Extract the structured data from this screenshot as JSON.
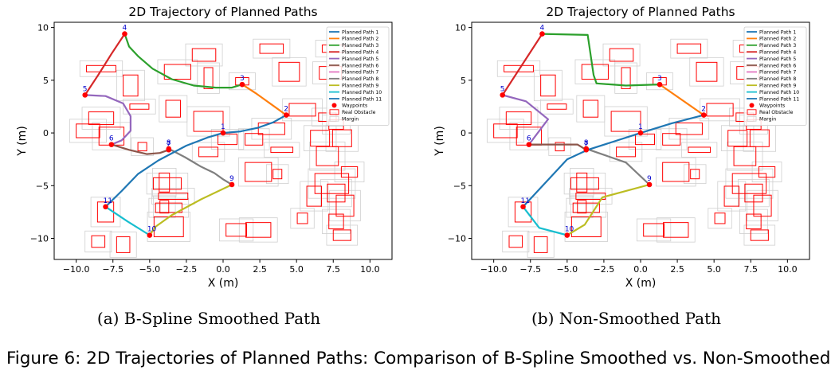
{
  "figure_caption": "Figure 6: 2D Trajectories of Planned Paths: Comparison of B-Spline Smoothed vs. Non-Smoothed",
  "colors": {
    "path1": "#1f77b4",
    "path2": "#ff7f0e",
    "path3": "#2ca02c",
    "path4": "#d62728",
    "path5": "#9467bd",
    "path6": "#8c564b",
    "path7": "#e377c2",
    "path8": "#7f7f7f",
    "path9": "#bcbd22",
    "path10": "#17becf",
    "path11": "#1f77b4",
    "waypoint": "#ff0000",
    "waypoint_label": "#0000cc",
    "obstacle": "#ff0000",
    "margin": "#cfcfcf"
  },
  "chart_data": [
    {
      "type": "line",
      "subcaption": "(a) B-Spline Smoothed Path",
      "title": "2D Trajectory of Planned Paths",
      "xlabel": "X (m)",
      "ylabel": "Y (m)",
      "xlim": [
        -11.5,
        11.5
      ],
      "ylim": [
        -12,
        10.5
      ],
      "xticks": [
        -10,
        -7.5,
        -5,
        -2.5,
        0,
        2.5,
        5,
        7.5,
        10
      ],
      "xtick_labels": [
        "−10.0",
        "−7.5",
        "−5.0",
        "−2.5",
        "0.0",
        "2.5",
        "5.0",
        "7.5",
        "10.0"
      ],
      "yticks": [
        -10,
        -5,
        0,
        5,
        10
      ],
      "ytick_labels": [
        "−10",
        "−5",
        "0",
        "5",
        "10"
      ],
      "grid": false,
      "legend_position": "top-right",
      "legend": [
        "Planned Path 1",
        "Planned Path 2",
        "Planned Path 3",
        "Planned Path 4",
        "Planned Path 5",
        "Planned Path 6",
        "Planned Path 7",
        "Planned Path 8",
        "Planned Path 9",
        "Planned Path 10",
        "Planned Path 11",
        "Waypoints",
        "Real Obstacle",
        "Margin"
      ],
      "waypoints": [
        {
          "label": "1",
          "x": 0.0,
          "y": 0.0
        },
        {
          "label": "2",
          "x": 4.3,
          "y": 1.7
        },
        {
          "label": "3",
          "x": 1.3,
          "y": 4.6
        },
        {
          "label": "4",
          "x": -6.7,
          "y": 9.4
        },
        {
          "label": "5",
          "x": -9.4,
          "y": 3.6
        },
        {
          "label": "6",
          "x": -7.6,
          "y": -1.1
        },
        {
          "label": "7",
          "x": -3.7,
          "y": -1.6
        },
        {
          "label": "8",
          "x": -3.7,
          "y": -1.5
        },
        {
          "label": "9",
          "x": 0.6,
          "y": -4.9
        },
        {
          "label": "10",
          "x": -5.0,
          "y": -9.7
        },
        {
          "label": "11",
          "x": -8.0,
          "y": -7.0
        }
      ],
      "series": [
        {
          "name": "Planned Path 1",
          "color_key": "path1",
          "x": [
            0.0,
            1.2,
            2.4,
            3.4,
            4.3
          ],
          "y": [
            0.0,
            0.15,
            0.5,
            1.0,
            1.7
          ]
        },
        {
          "name": "Planned Path 2",
          "color_key": "path2",
          "x": [
            4.3,
            3.3,
            2.3,
            1.3
          ],
          "y": [
            1.7,
            2.7,
            3.7,
            4.6
          ]
        },
        {
          "name": "Planned Path 3",
          "color_key": "path3",
          "x": [
            1.3,
            0.6,
            -0.5,
            -2.0,
            -3.5,
            -4.8,
            -5.8,
            -6.4,
            -6.7
          ],
          "y": [
            4.6,
            4.3,
            4.3,
            4.5,
            5.1,
            6.1,
            7.3,
            8.2,
            9.4
          ]
        },
        {
          "name": "Planned Path 4",
          "color_key": "path4",
          "x": [
            -6.7,
            -7.6,
            -8.5,
            -9.4
          ],
          "y": [
            9.4,
            7.5,
            5.5,
            3.6
          ]
        },
        {
          "name": "Planned Path 5",
          "color_key": "path5",
          "x": [
            -9.4,
            -8.0,
            -6.8,
            -6.3,
            -6.3,
            -6.9,
            -7.6
          ],
          "y": [
            3.6,
            3.5,
            2.8,
            1.6,
            0.2,
            -0.7,
            -1.1
          ]
        },
        {
          "name": "Planned Path 6",
          "color_key": "path6",
          "x": [
            -7.6,
            -6.4,
            -5.2,
            -4.3,
            -3.7
          ],
          "y": [
            -1.1,
            -1.6,
            -2.0,
            -1.9,
            -1.6
          ]
        },
        {
          "name": "Planned Path 7",
          "color_key": "path7",
          "x": [
            -3.7,
            -3.7
          ],
          "y": [
            -1.6,
            -1.5
          ]
        },
        {
          "name": "Planned Path 8",
          "color_key": "path8",
          "x": [
            -3.7,
            -2.6,
            -1.5,
            -0.6,
            0.0,
            0.6
          ],
          "y": [
            -1.5,
            -2.3,
            -3.2,
            -3.8,
            -4.4,
            -4.9
          ]
        },
        {
          "name": "Planned Path 9",
          "color_key": "path9",
          "x": [
            0.6,
            -1.5,
            -3.5,
            -4.6,
            -5.0
          ],
          "y": [
            -4.9,
            -6.3,
            -7.8,
            -8.9,
            -9.7
          ]
        },
        {
          "name": "Planned Path 10",
          "color_key": "path10",
          "x": [
            -5.0,
            -6.5,
            -8.0
          ],
          "y": [
            -9.7,
            -8.4,
            -7.0
          ]
        },
        {
          "name": "Planned Path 11",
          "color_key": "path11",
          "x": [
            -8.0,
            -6.9,
            -5.8,
            -4.4,
            -2.5,
            -1.0,
            0.0
          ],
          "y": [
            -7.0,
            -5.5,
            -3.9,
            -2.6,
            -1.2,
            -0.4,
            0.0
          ]
        }
      ],
      "obstacles": [
        [
          -8.3,
          6.1,
          2.0,
          0.6
        ],
        [
          -6.3,
          4.5,
          1.0,
          2.0
        ],
        [
          -3.1,
          5.8,
          1.8,
          1.4
        ],
        [
          -1.3,
          7.4,
          1.6,
          1.2
        ],
        [
          -1.0,
          5.2,
          0.6,
          2.0
        ],
        [
          1.3,
          4.9,
          0.9,
          0.7
        ],
        [
          3.3,
          8.0,
          1.6,
          0.9
        ],
        [
          4.5,
          5.8,
          1.4,
          1.8
        ],
        [
          7.5,
          8.0,
          1.5,
          0.7
        ],
        [
          7.3,
          5.7,
          1.5,
          1.2
        ],
        [
          -8.3,
          1.4,
          1.7,
          1.2
        ],
        [
          -9.2,
          0.2,
          1.6,
          1.3
        ],
        [
          -7.6,
          -0.3,
          1.7,
          1.7
        ],
        [
          -5.7,
          2.5,
          1.3,
          0.5
        ],
        [
          -3.4,
          2.3,
          1.0,
          1.6
        ],
        [
          -1.0,
          1.1,
          2.0,
          1.9
        ],
        [
          0.3,
          -0.6,
          1.3,
          1.0
        ],
        [
          2.1,
          -0.6,
          1.2,
          1.1
        ],
        [
          3.3,
          0.4,
          1.8,
          1.1
        ],
        [
          5.4,
          2.2,
          1.8,
          1.2
        ],
        [
          7.1,
          1.5,
          1.2,
          0.8
        ],
        [
          6.6,
          -0.5,
          1.3,
          1.5
        ],
        [
          7.1,
          -2.2,
          1.5,
          1.8
        ],
        [
          8.1,
          -0.5,
          1.3,
          1.6
        ],
        [
          7.7,
          0.8,
          1.0,
          0.9
        ],
        [
          -5.5,
          -1.3,
          0.6,
          0.8
        ],
        [
          -1.0,
          -1.8,
          1.3,
          0.9
        ],
        [
          2.4,
          -3.7,
          1.8,
          1.8
        ],
        [
          4.0,
          -1.6,
          1.5,
          0.5
        ],
        [
          3.7,
          -3.9,
          0.6,
          0.9
        ],
        [
          -3.8,
          -4.8,
          1.9,
          1.1
        ],
        [
          -3.4,
          -6.0,
          2.0,
          0.6
        ],
        [
          -4.0,
          -4.7,
          0.7,
          1.8
        ],
        [
          -3.7,
          -7.1,
          1.8,
          0.9
        ],
        [
          -4.0,
          -7.0,
          0.6,
          1.2
        ],
        [
          -3.7,
          -8.9,
          2.0,
          1.9
        ],
        [
          -8.0,
          -7.5,
          1.1,
          1.9
        ],
        [
          6.2,
          -6.0,
          1.0,
          1.9
        ],
        [
          7.7,
          -5.7,
          1.2,
          1.7
        ],
        [
          8.6,
          -3.7,
          1.1,
          1.0
        ],
        [
          7.4,
          -4.8,
          2.3,
          1.9
        ],
        [
          8.3,
          -6.9,
          1.2,
          2.0
        ],
        [
          5.4,
          -8.1,
          0.7,
          1.0
        ],
        [
          7.7,
          -8.4,
          1.0,
          1.4
        ],
        [
          8.1,
          -9.7,
          1.2,
          1.0
        ],
        [
          0.9,
          -9.2,
          1.4,
          1.2
        ],
        [
          2.4,
          -9.2,
          1.7,
          1.4
        ],
        [
          -8.5,
          -10.3,
          0.9,
          1.1
        ],
        [
          -6.8,
          -10.6,
          0.9,
          1.5
        ]
      ]
    },
    {
      "type": "line",
      "subcaption": "(b) Non-Smoothed Path",
      "title": "2D Trajectory of Planned Paths",
      "xlabel": "X (m)",
      "ylabel": "Y (m)",
      "xlim": [
        -11.5,
        11.5
      ],
      "ylim": [
        -12,
        10.5
      ],
      "xticks": [
        -10,
        -7.5,
        -5,
        -2.5,
        0,
        2.5,
        5,
        7.5,
        10
      ],
      "xtick_labels": [
        "−10.0",
        "−7.5",
        "−5.0",
        "−2.5",
        "0.0",
        "2.5",
        "5.0",
        "7.5",
        "10.0"
      ],
      "yticks": [
        -10,
        -5,
        0,
        5,
        10
      ],
      "ytick_labels": [
        "−10",
        "−5",
        "0",
        "5",
        "10"
      ],
      "grid": false,
      "legend_position": "top-right",
      "legend": [
        "Planned Path 1",
        "Planned Path 2",
        "Planned Path 3",
        "Planned Path 4",
        "Planned Path 5",
        "Planned Path 6",
        "Planned Path 7",
        "Planned Path 8",
        "Planned Path 9",
        "Planned Path 10",
        "Planned Path 11",
        "Waypoints",
        "Real Obstacle",
        "Margin"
      ],
      "waypoints": [
        {
          "label": "1",
          "x": 0.0,
          "y": 0.0
        },
        {
          "label": "2",
          "x": 4.3,
          "y": 1.7
        },
        {
          "label": "3",
          "x": 1.3,
          "y": 4.6
        },
        {
          "label": "4",
          "x": -6.7,
          "y": 9.4
        },
        {
          "label": "5",
          "x": -9.4,
          "y": 3.6
        },
        {
          "label": "6",
          "x": -7.6,
          "y": -1.1
        },
        {
          "label": "7",
          "x": -3.7,
          "y": -1.6
        },
        {
          "label": "8",
          "x": -3.7,
          "y": -1.5
        },
        {
          "label": "9",
          "x": 0.6,
          "y": -4.9
        },
        {
          "label": "10",
          "x": -5.0,
          "y": -9.7
        },
        {
          "label": "11",
          "x": -8.0,
          "y": -7.0
        }
      ],
      "series": [
        {
          "name": "Planned Path 1",
          "color_key": "path1",
          "x": [
            0.0,
            2.1,
            4.3
          ],
          "y": [
            0.0,
            0.9,
            1.7
          ]
        },
        {
          "name": "Planned Path 2",
          "color_key": "path2",
          "x": [
            4.3,
            1.3
          ],
          "y": [
            1.7,
            4.6
          ]
        },
        {
          "name": "Planned Path 3",
          "color_key": "path3",
          "x": [
            1.3,
            -1.0,
            -3.0,
            -3.2,
            -3.6,
            -6.7
          ],
          "y": [
            4.6,
            4.5,
            4.7,
            5.5,
            9.3,
            9.4
          ]
        },
        {
          "name": "Planned Path 4",
          "color_key": "path4",
          "x": [
            -6.7,
            -9.4
          ],
          "y": [
            9.4,
            3.6
          ]
        },
        {
          "name": "Planned Path 5",
          "color_key": "path5",
          "x": [
            -9.4,
            -7.8,
            -6.3,
            -7.6
          ],
          "y": [
            3.6,
            3.0,
            1.3,
            -1.1
          ]
        },
        {
          "name": "Planned Path 6",
          "color_key": "path6",
          "x": [
            -7.6,
            -4.3,
            -3.7
          ],
          "y": [
            -1.1,
            -1.1,
            -1.6
          ]
        },
        {
          "name": "Planned Path 7",
          "color_key": "path7",
          "x": [
            -3.7,
            -3.7
          ],
          "y": [
            -1.6,
            -1.5
          ]
        },
        {
          "name": "Planned Path 8",
          "color_key": "path8",
          "x": [
            -3.7,
            -1.0,
            0.6
          ],
          "y": [
            -1.5,
            -2.8,
            -4.9
          ]
        },
        {
          "name": "Planned Path 9",
          "color_key": "path9",
          "x": [
            0.6,
            -2.6,
            -3.8,
            -5.0
          ],
          "y": [
            -4.9,
            -6.1,
            -8.7,
            -9.7
          ]
        },
        {
          "name": "Planned Path 10",
          "color_key": "path10",
          "x": [
            -5.0,
            -6.9,
            -8.0
          ],
          "y": [
            -9.7,
            -9.0,
            -7.0
          ]
        },
        {
          "name": "Planned Path 11",
          "color_key": "path11",
          "x": [
            -8.0,
            -5.0,
            -3.6,
            0.0
          ],
          "y": [
            -7.0,
            -2.5,
            -1.6,
            0.0
          ]
        }
      ],
      "obstacles": [
        [
          -8.3,
          6.1,
          2.0,
          0.6
        ],
        [
          -6.3,
          4.5,
          1.0,
          2.0
        ],
        [
          -3.1,
          5.8,
          1.8,
          1.4
        ],
        [
          -1.3,
          7.4,
          1.6,
          1.2
        ],
        [
          -1.0,
          5.2,
          0.6,
          2.0
        ],
        [
          1.3,
          4.9,
          0.9,
          0.7
        ],
        [
          3.3,
          8.0,
          1.6,
          0.9
        ],
        [
          4.5,
          5.8,
          1.4,
          1.8
        ],
        [
          7.5,
          8.0,
          1.5,
          0.7
        ],
        [
          7.3,
          5.7,
          1.5,
          1.2
        ],
        [
          -8.3,
          1.4,
          1.7,
          1.2
        ],
        [
          -9.2,
          0.2,
          1.6,
          1.3
        ],
        [
          -7.6,
          -0.3,
          1.7,
          1.7
        ],
        [
          -5.7,
          2.5,
          1.3,
          0.5
        ],
        [
          -3.4,
          2.3,
          1.0,
          1.6
        ],
        [
          -1.0,
          1.1,
          2.0,
          1.9
        ],
        [
          0.3,
          -0.6,
          1.3,
          1.0
        ],
        [
          2.1,
          -0.6,
          1.2,
          1.1
        ],
        [
          3.3,
          0.4,
          1.8,
          1.1
        ],
        [
          5.4,
          2.2,
          1.8,
          1.2
        ],
        [
          7.1,
          1.5,
          1.2,
          0.8
        ],
        [
          6.6,
          -0.5,
          1.3,
          1.5
        ],
        [
          7.1,
          -2.2,
          1.5,
          1.8
        ],
        [
          8.1,
          -0.5,
          1.3,
          1.6
        ],
        [
          7.7,
          0.8,
          1.0,
          0.9
        ],
        [
          -5.5,
          -1.3,
          0.6,
          0.8
        ],
        [
          -1.0,
          -1.8,
          1.3,
          0.9
        ],
        [
          2.4,
          -3.7,
          1.8,
          1.8
        ],
        [
          4.0,
          -1.6,
          1.5,
          0.5
        ],
        [
          3.7,
          -3.9,
          0.6,
          0.9
        ],
        [
          -3.8,
          -4.8,
          1.9,
          1.1
        ],
        [
          -3.4,
          -6.0,
          2.0,
          0.6
        ],
        [
          -4.0,
          -4.7,
          0.7,
          1.8
        ],
        [
          -3.7,
          -7.1,
          1.8,
          0.9
        ],
        [
          -4.0,
          -7.0,
          0.6,
          1.2
        ],
        [
          -3.7,
          -8.9,
          2.0,
          1.9
        ],
        [
          -8.0,
          -7.5,
          1.1,
          1.9
        ],
        [
          6.2,
          -6.0,
          1.0,
          1.9
        ],
        [
          7.7,
          -5.7,
          1.2,
          1.7
        ],
        [
          8.6,
          -3.7,
          1.1,
          1.0
        ],
        [
          7.4,
          -4.8,
          2.3,
          1.9
        ],
        [
          8.3,
          -6.9,
          1.2,
          2.0
        ],
        [
          5.4,
          -8.1,
          0.7,
          1.0
        ],
        [
          7.7,
          -8.4,
          1.0,
          1.4
        ],
        [
          8.1,
          -9.7,
          1.2,
          1.0
        ],
        [
          0.9,
          -9.2,
          1.4,
          1.2
        ],
        [
          2.4,
          -9.2,
          1.7,
          1.4
        ],
        [
          -8.5,
          -10.3,
          0.9,
          1.1
        ],
        [
          -6.8,
          -10.6,
          0.9,
          1.5
        ]
      ]
    }
  ]
}
